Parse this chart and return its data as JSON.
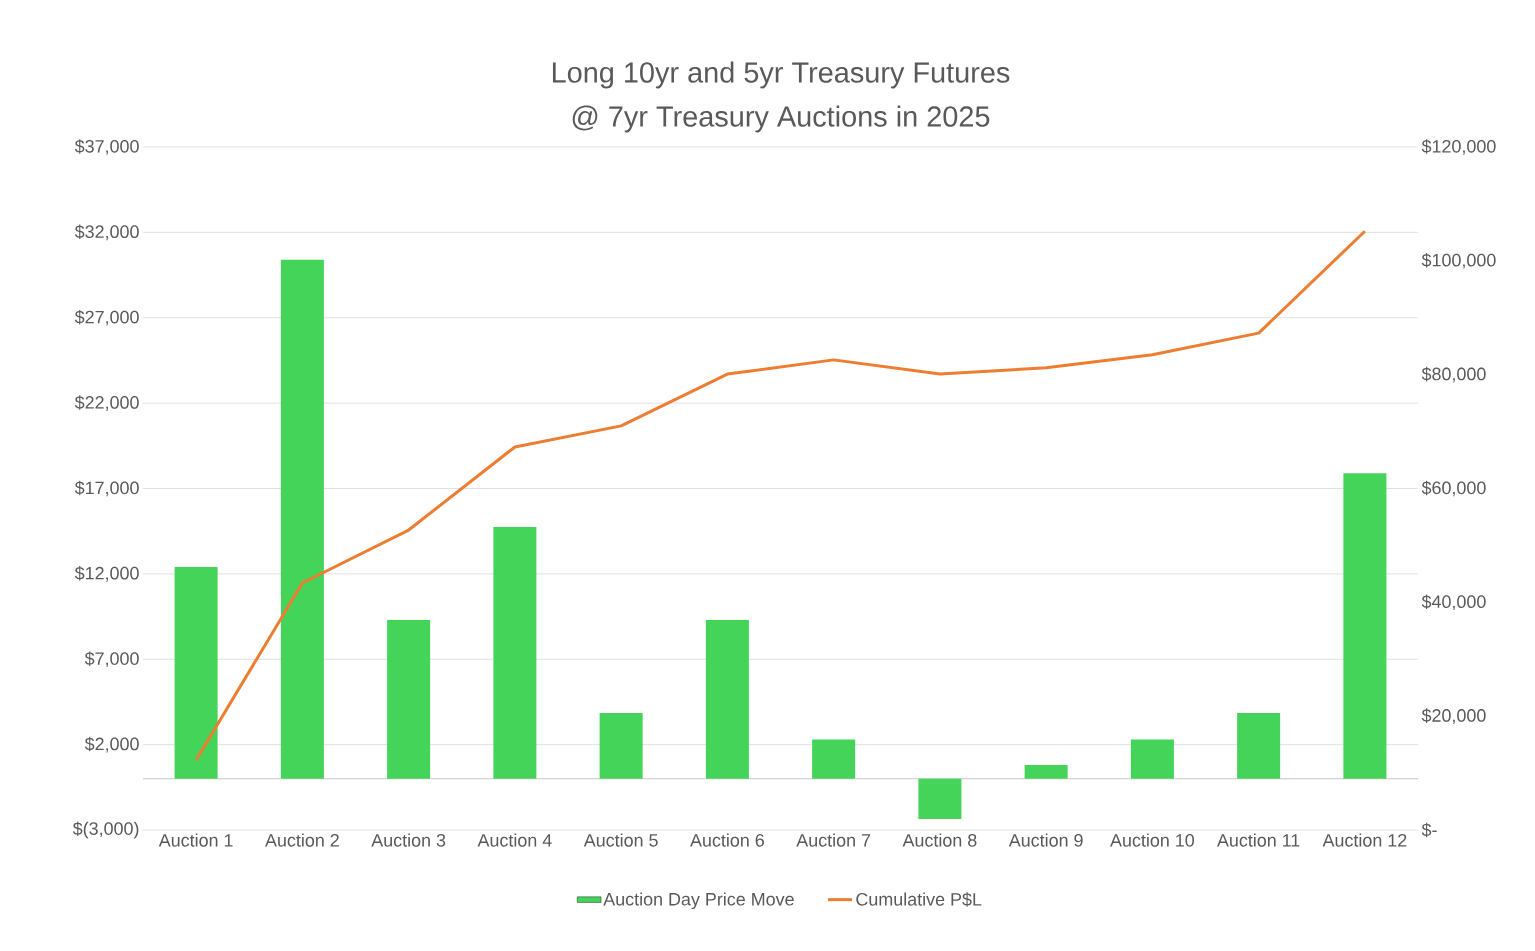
{
  "chart_data": {
    "type": "bar",
    "title": "Long 10yr and 5yr Treasury Futures",
    "subtitle": "@ 7yr Treasury Auctions in 2025",
    "categories": [
      "Auction 1",
      "Auction 2",
      "Auction 3",
      "Auction 4",
      "Auction 5",
      "Auction 6",
      "Auction 7",
      "Auction 8",
      "Auction 9",
      "Auction 10",
      "Auction 11",
      "Auction 12"
    ],
    "series": [
      {
        "name": "Auction Day Price Move",
        "color": "#44d45a",
        "values": [
          12400,
          30400,
          9300,
          14750,
          3850,
          9300,
          2300,
          -2350,
          800,
          2300,
          3850,
          17900
        ]
      },
      {
        "name": "Cumulative P$L",
        "type": "line",
        "axis": "y2",
        "color": "#ed7d31",
        "values": [
          12300,
          43400,
          52700,
          67300,
          71000,
          80100,
          82600,
          80100,
          81200,
          83500,
          87300,
          105200
        ]
      }
    ],
    "ylim": [
      -3000,
      37000
    ],
    "yticks": [
      {
        "value": -3000,
        "label": "$(3,000)"
      },
      {
        "value": 2000,
        "label": "$2,000"
      },
      {
        "value": 7000,
        "label": "$7,000"
      },
      {
        "value": 12000,
        "label": "$12,000"
      },
      {
        "value": 17000,
        "label": "$17,000"
      },
      {
        "value": 22000,
        "label": "$22,000"
      },
      {
        "value": 27000,
        "label": "$27,000"
      },
      {
        "value": 32000,
        "label": "$32,000"
      },
      {
        "value": 37000,
        "label": "$37,000"
      }
    ],
    "y2lim": [
      0,
      120000
    ],
    "y2ticks": [
      {
        "value": 0,
        "label": "$-"
      },
      {
        "value": 20000,
        "label": "$20,000"
      },
      {
        "value": 40000,
        "label": "$40,000"
      },
      {
        "value": 60000,
        "label": "$60,000"
      },
      {
        "value": 80000,
        "label": "$80,000"
      },
      {
        "value": 100000,
        "label": "$100,000"
      },
      {
        "value": 120000,
        "label": "$120,000"
      }
    ],
    "grid": "y",
    "legend": "bottom"
  }
}
